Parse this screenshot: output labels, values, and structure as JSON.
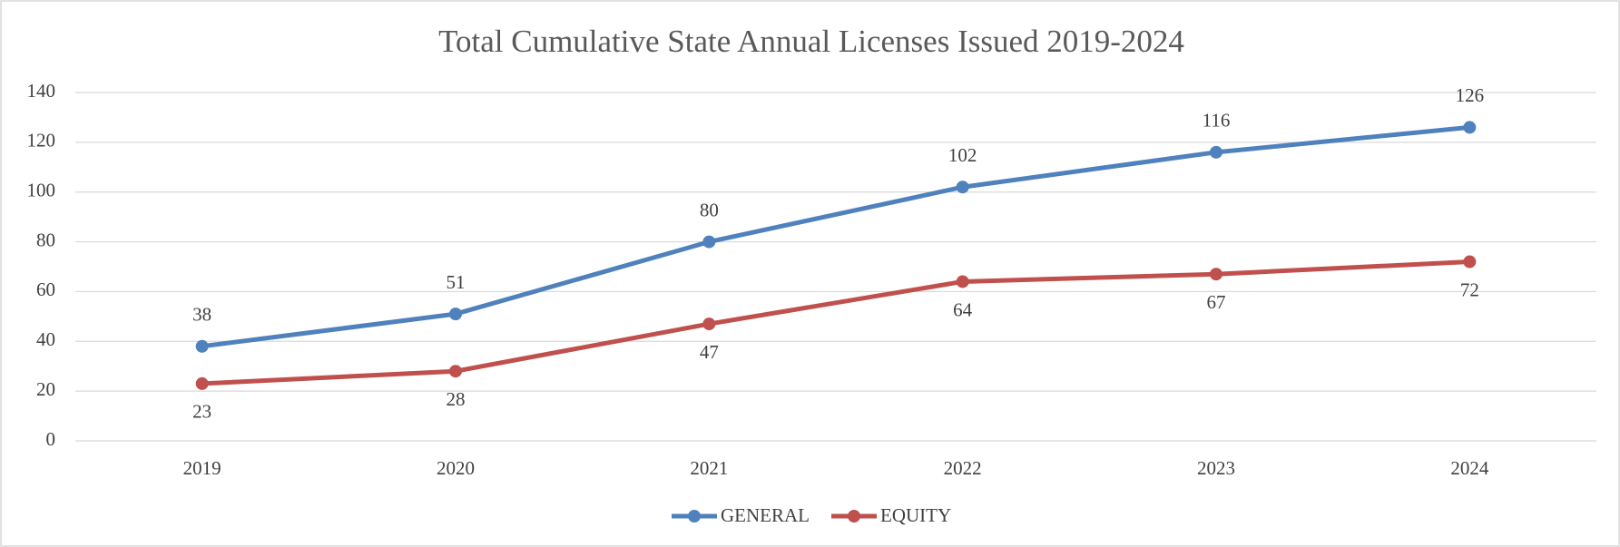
{
  "chart_data": {
    "type": "line",
    "title": "Total Cumulative State Annual Licenses Issued 2019-2024",
    "categories": [
      "2019",
      "2020",
      "2021",
      "2022",
      "2023",
      "2024"
    ],
    "series": [
      {
        "name": "GENERAL",
        "color": "#4f81bd",
        "values": [
          38,
          51,
          80,
          102,
          116,
          126
        ],
        "label_position": "above"
      },
      {
        "name": "EQUITY",
        "color": "#c0504d",
        "values": [
          23,
          28,
          47,
          64,
          67,
          72
        ],
        "label_position": "below"
      }
    ],
    "ylim": [
      0,
      140
    ],
    "yticks": [
      0,
      20,
      40,
      60,
      80,
      100,
      120,
      140
    ],
    "grid": true,
    "legend": "bottom",
    "data_labels": true
  }
}
